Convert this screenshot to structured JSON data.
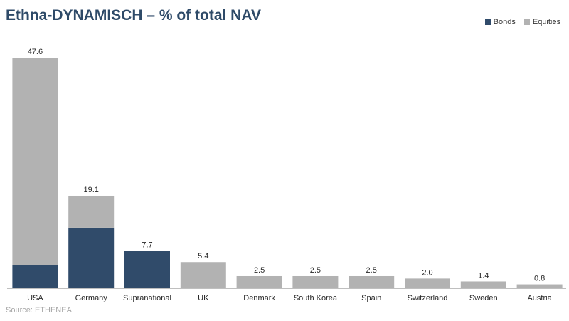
{
  "title": "Ethna-DYNAMISCH – % of total NAV",
  "source": "Source: ETHENEA",
  "colors": {
    "bonds": "#304b6a",
    "equities": "#b2b2b2"
  },
  "chart_data": {
    "type": "bar",
    "stacked": true,
    "title": "Ethna-DYNAMISCH – % of total NAV",
    "categories": [
      "USA",
      "Germany",
      "Supranational",
      "UK",
      "Denmark",
      "South Korea",
      "Spain",
      "Switzerland",
      "Sweden",
      "Austria"
    ],
    "series": [
      {
        "name": "Bonds",
        "values": [
          4.8,
          12.5,
          7.7,
          0,
          0,
          0,
          0,
          0,
          0,
          0
        ]
      },
      {
        "name": "Equities",
        "values": [
          42.8,
          6.6,
          0,
          5.4,
          2.5,
          2.5,
          2.5,
          2.0,
          1.4,
          0.8
        ]
      }
    ],
    "totals": [
      "47.6",
      "19.1",
      "7.7",
      "5.4",
      "2.5",
      "2.5",
      "2.5",
      "2.0",
      "1.4",
      "0.8"
    ],
    "ylim": [
      0,
      50
    ],
    "grid": false,
    "legend": "top-right"
  }
}
